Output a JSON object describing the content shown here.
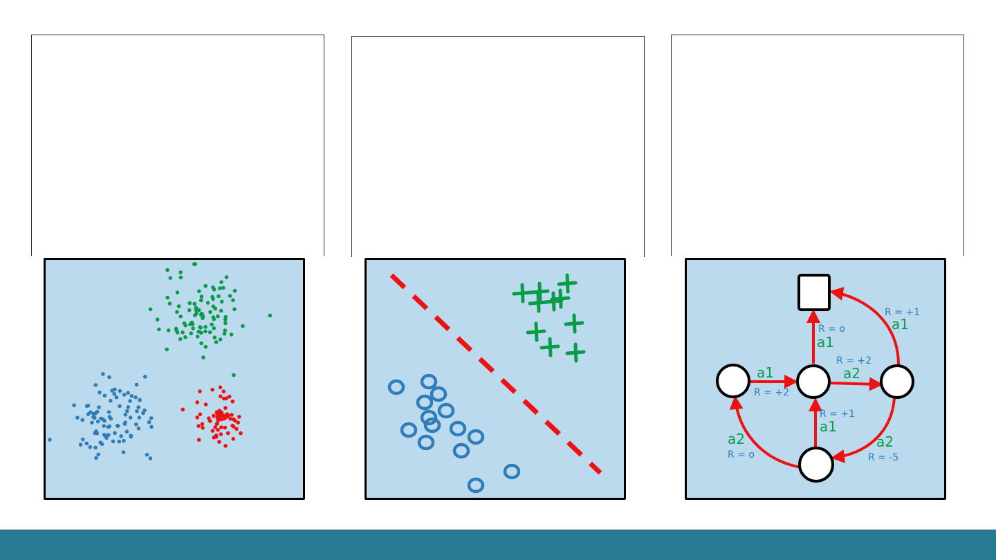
{
  "colors": {
    "panel_bg": "#bcdaed",
    "blue": "#2f7db8",
    "green": "#0a9b48",
    "red": "#ee1111",
    "footer": "#277a91"
  },
  "panels": [
    {
      "name": "clustering",
      "seed": 7,
      "clusters": [
        {
          "color": "blue",
          "cx": 100,
          "cy": 225,
          "spread": 28,
          "count": 90
        },
        {
          "color": "green",
          "cx": 225,
          "cy": 80,
          "spread": 30,
          "count": 95
        },
        {
          "color": "red",
          "cx": 250,
          "cy": 225,
          "spread": 18,
          "count": 65
        }
      ]
    },
    {
      "name": "classification",
      "plus_marks": [
        [
          250,
          46
        ],
        [
          225,
          48
        ],
        [
          290,
          34
        ],
        [
          270,
          60
        ],
        [
          248,
          62
        ],
        [
          300,
          92
        ],
        [
          245,
          104
        ],
        [
          265,
          126
        ],
        [
          302,
          134
        ],
        [
          280,
          56
        ]
      ],
      "circle_marks": [
        [
          43,
          184
        ],
        [
          90,
          176
        ],
        [
          104,
          194
        ],
        [
          84,
          206
        ],
        [
          115,
          218
        ],
        [
          90,
          228
        ],
        [
          95,
          239
        ],
        [
          61,
          246
        ],
        [
          132,
          244
        ],
        [
          158,
          256
        ],
        [
          86,
          264
        ],
        [
          137,
          276
        ],
        [
          210,
          306
        ],
        [
          158,
          326
        ]
      ]
    },
    {
      "name": "mdp",
      "labels": {
        "r_top_right": "R = +1",
        "a_top_right": "a1",
        "r_mid_up": "R = o",
        "a_mid_up": "a1",
        "r_mid_right": "R = +2",
        "a_mid_right": "a2",
        "a_left": "a1",
        "r_left": "R = +2",
        "r_bottom_mid": "R = +1",
        "a_bottom_mid": "a1",
        "a_bottom_left": "a2",
        "r_bottom_left": "R = o",
        "a_bottom_right": "a2",
        "r_bottom_right": "R = -5"
      }
    }
  ]
}
